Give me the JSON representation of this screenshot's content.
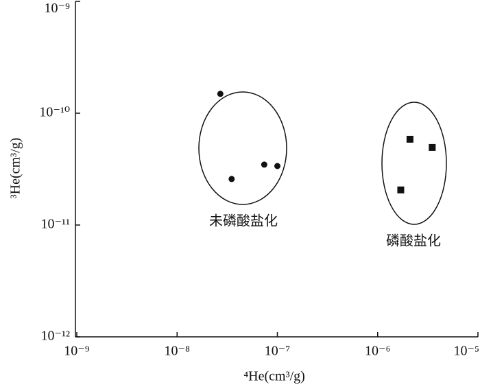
{
  "chart_data": {
    "type": "scatter",
    "xlabel": "⁴He(cm³/g)",
    "ylabel": "³He(cm³/g)",
    "xscale": "log",
    "yscale": "log",
    "xlim": [
      1e-09,
      1e-05
    ],
    "ylim": [
      1e-12,
      1e-09
    ],
    "xticks": [
      {
        "value": 1e-09,
        "label": "10⁻⁹"
      },
      {
        "value": 1e-08,
        "label": "10⁻⁸"
      },
      {
        "value": 1e-07,
        "label": "10⁻⁷"
      },
      {
        "value": 1e-06,
        "label": "10⁻⁶"
      },
      {
        "value": 1e-05,
        "label": "10⁻⁵"
      }
    ],
    "yticks": [
      {
        "value": 1e-12,
        "label": "10⁻¹²"
      },
      {
        "value": 1e-11,
        "label": "10⁻¹¹"
      },
      {
        "value": 1e-10,
        "label": "10⁻¹⁰"
      },
      {
        "value": 1e-09,
        "label": "10⁻⁹"
      }
    ],
    "series": [
      {
        "name": "未磷酸盐化",
        "marker": "circle",
        "color": "#111111",
        "x": [
          2.7e-08,
          3.5e-08,
          7.4e-08,
          1e-07
        ],
        "values": [
          1.49e-10,
          2.58e-11,
          3.47e-11,
          3.37e-11
        ]
      },
      {
        "name": "磷酸盐化",
        "marker": "square",
        "color": "#111111",
        "x": [
          2.1e-06,
          3.5e-06,
          1.7e-06
        ],
        "values": [
          5.85e-11,
          4.94e-11,
          2.06e-11
        ]
      }
    ]
  }
}
